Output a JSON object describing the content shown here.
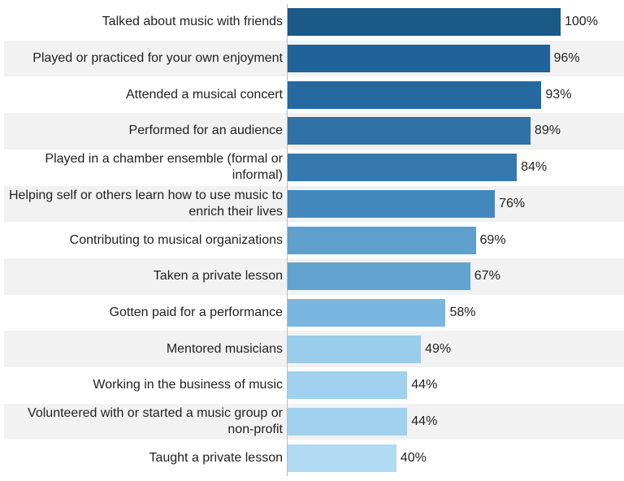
{
  "chart_data": {
    "type": "bar",
    "orientation": "horizontal",
    "categories": [
      "Talked about music with friends",
      "Played or practiced for your own enjoyment",
      "Attended a musical concert",
      "Performed for an audience",
      "Played in a chamber ensemble (formal or informal)",
      "Helping self or others learn how to use music to enrich their lives",
      "Contributing to musical organizations",
      "Taken a private lesson",
      "Gotten paid for a performance",
      "Mentored musicians",
      "Working in the business of music",
      "Volunteered with or started a music group or non-profit",
      "Taught a private lesson"
    ],
    "values": [
      100,
      96,
      93,
      89,
      84,
      76,
      69,
      67,
      58,
      49,
      44,
      44,
      40
    ],
    "value_labels": [
      "100%",
      "96%",
      "93%",
      "89%",
      "84%",
      "76%",
      "69%",
      "67%",
      "58%",
      "49%",
      "44%",
      "44%",
      "40%"
    ],
    "colors": [
      "#1b5987",
      "#20639a",
      "#24699f",
      "#2e72a8",
      "#3679ad",
      "#4288bd",
      "#5e9fcc",
      "#62a3cf",
      "#79b6e0",
      "#99cdec",
      "#a0d2ef",
      "#a0d2ef",
      "#b0dbf2"
    ],
    "xlim": [
      0,
      100
    ]
  }
}
